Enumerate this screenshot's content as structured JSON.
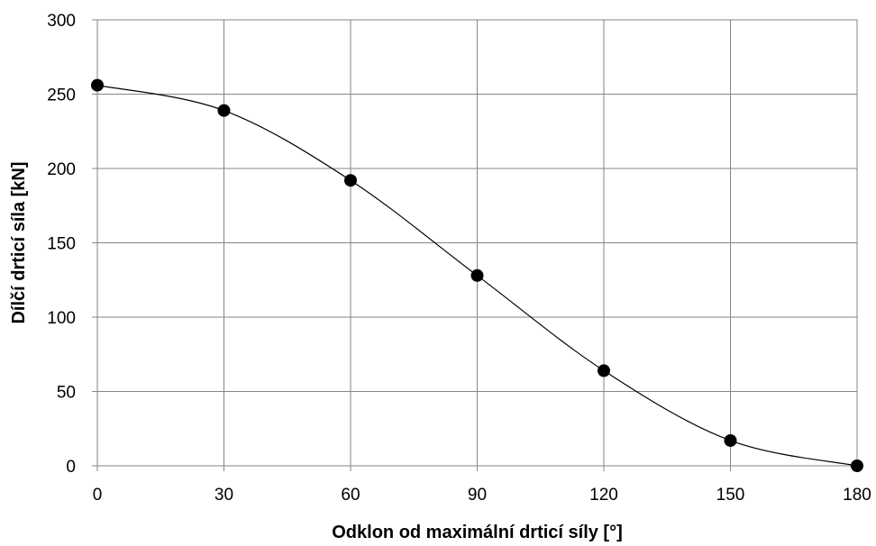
{
  "chart_data": {
    "type": "scatter",
    "title": "",
    "xlabel": "Odklon od maximální drticí síly [°]",
    "ylabel": "Dílčí drticí síla [kN]",
    "xlim": [
      0,
      180
    ],
    "ylim": [
      0,
      300
    ],
    "x_ticks": [
      0,
      30,
      60,
      90,
      120,
      150,
      180
    ],
    "y_ticks": [
      0,
      50,
      100,
      150,
      200,
      250,
      300
    ],
    "grid": true,
    "legend": "none",
    "series": [
      {
        "x": [
          0,
          30,
          60,
          90,
          120,
          150,
          180
        ],
        "values": [
          256,
          239,
          192,
          128,
          64,
          17,
          0
        ],
        "marker": "circle",
        "color": "#000000",
        "smooth_line": true
      }
    ]
  }
}
